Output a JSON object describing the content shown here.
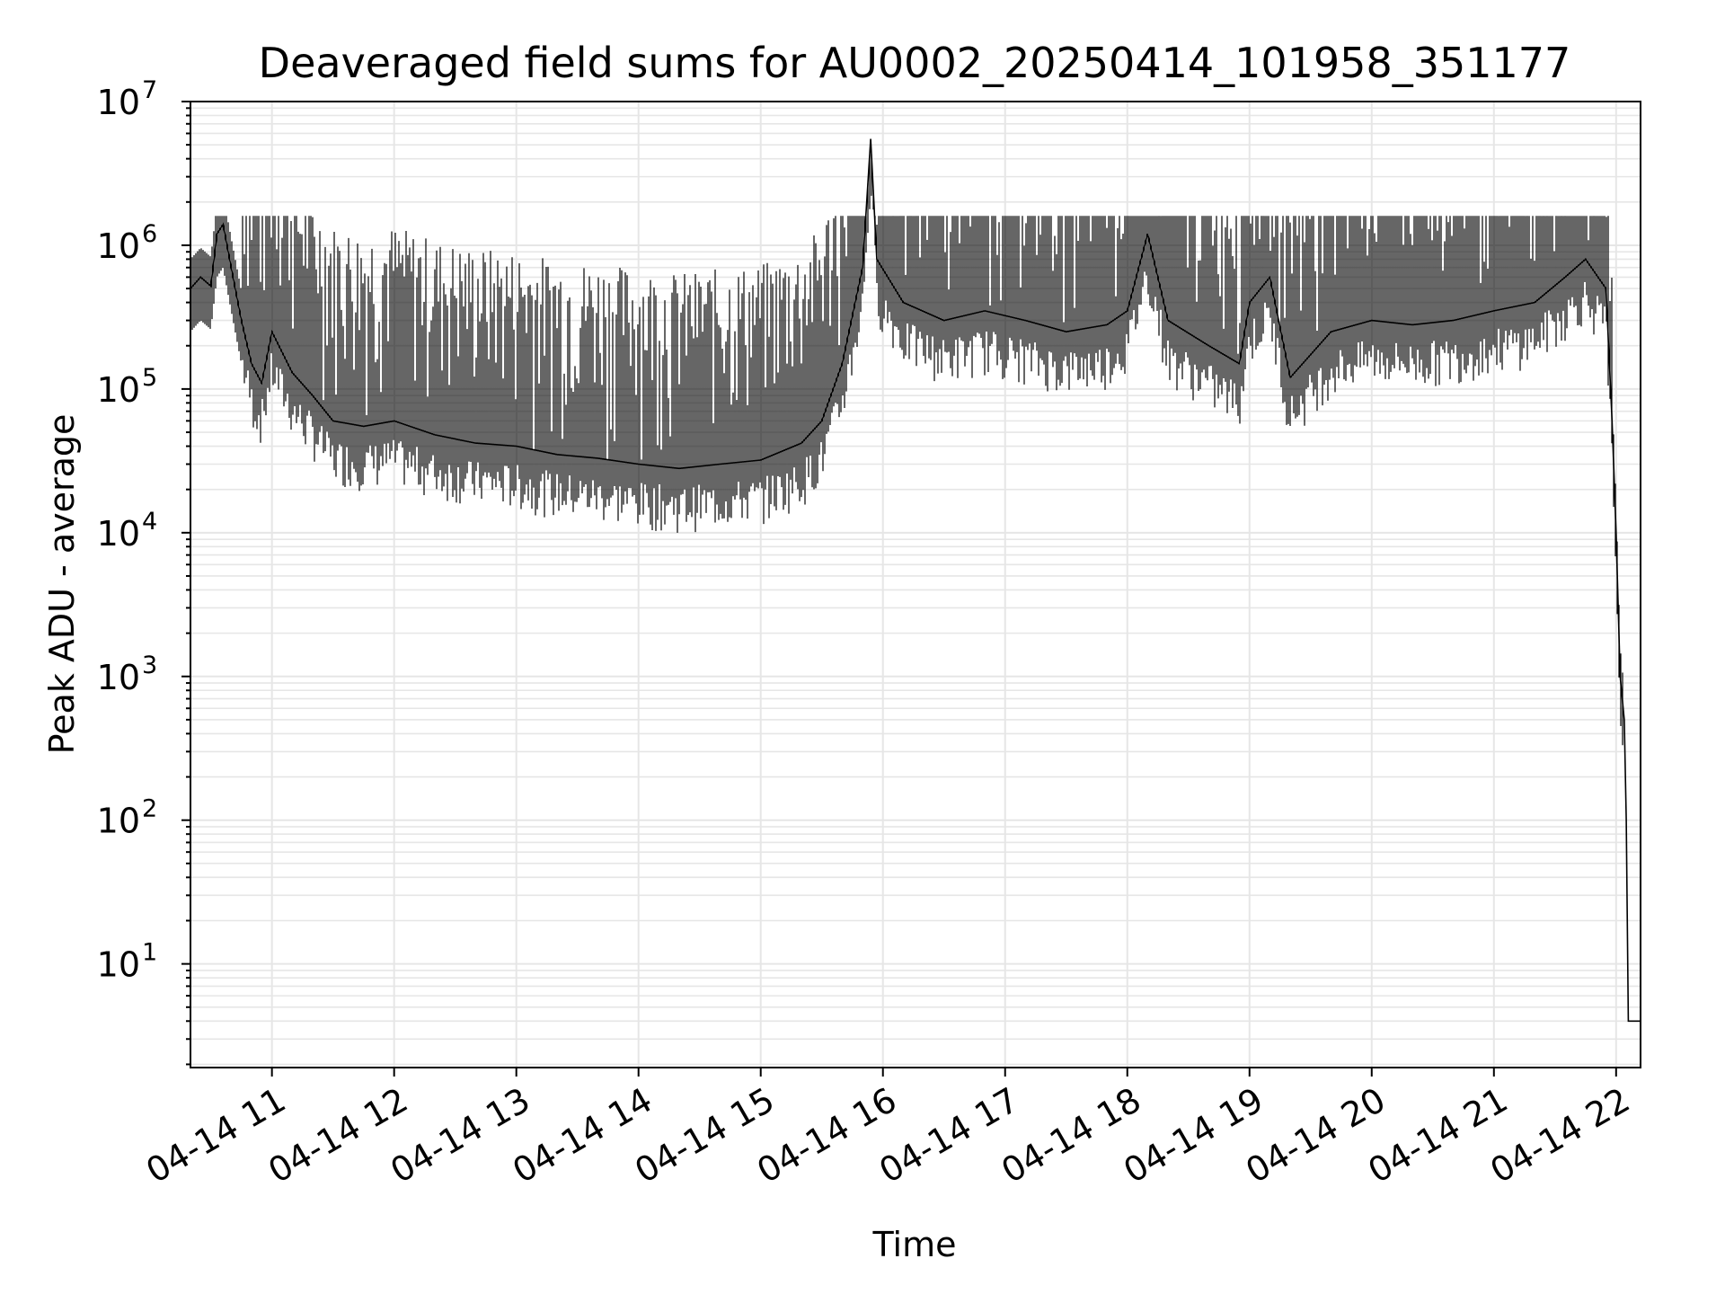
{
  "chart_data": {
    "type": "line",
    "title": "Deaveraged field sums for AU0002_20250414_101958_351177",
    "xlabel": "Time",
    "ylabel": "Peak ADU - average",
    "yscale": "log",
    "xlim": [
      "04-14 10:20",
      "04-14 22:12"
    ],
    "ylim": [
      1.9,
      10000000
    ],
    "grid": true,
    "grid_color": "#e6e6e6",
    "line_color": "#000000",
    "x_ticks": [
      {
        "label": "04-14 11",
        "hour": 11
      },
      {
        "label": "04-14 12",
        "hour": 12
      },
      {
        "label": "04-14 13",
        "hour": 13
      },
      {
        "label": "04-14 14",
        "hour": 14
      },
      {
        "label": "04-14 15",
        "hour": 15
      },
      {
        "label": "04-14 16",
        "hour": 16
      },
      {
        "label": "04-14 17",
        "hour": 17
      },
      {
        "label": "04-14 18",
        "hour": 18
      },
      {
        "label": "04-14 19",
        "hour": 19
      },
      {
        "label": "04-14 20",
        "hour": 20
      },
      {
        "label": "04-14 21",
        "hour": 21
      },
      {
        "label": "04-14 22",
        "hour": 22
      }
    ],
    "y_ticks": [
      {
        "base": "10",
        "exp": "1",
        "value": 10
      },
      {
        "base": "10",
        "exp": "2",
        "value": 100
      },
      {
        "base": "10",
        "exp": "3",
        "value": 1000
      },
      {
        "base": "10",
        "exp": "4",
        "value": 10000
      },
      {
        "base": "10",
        "exp": "5",
        "value": 100000
      },
      {
        "base": "10",
        "exp": "6",
        "value": 1000000
      },
      {
        "base": "10",
        "exp": "7",
        "value": 10000000
      }
    ],
    "series": [
      {
        "points": [
          [
            "10:20",
            500000
          ],
          [
            "10:25",
            600000
          ],
          [
            "10:30",
            520000
          ],
          [
            "10:33",
            1200000
          ],
          [
            "10:36",
            1400000
          ],
          [
            "10:40",
            700000
          ],
          [
            "10:45",
            300000
          ],
          [
            "10:50",
            150000
          ],
          [
            "10:55",
            110000
          ],
          [
            "11:00",
            250000
          ],
          [
            "11:10",
            130000
          ],
          [
            "11:20",
            90000
          ],
          [
            "11:30",
            60000
          ],
          [
            "11:45",
            55000
          ],
          [
            "12:00",
            60000
          ],
          [
            "12:20",
            48000
          ],
          [
            "12:40",
            42000
          ],
          [
            "13:00",
            40000
          ],
          [
            "13:20",
            35000
          ],
          [
            "13:40",
            33000
          ],
          [
            "14:00",
            30000
          ],
          [
            "14:20",
            28000
          ],
          [
            "14:40",
            30000
          ],
          [
            "15:00",
            32000
          ],
          [
            "15:20",
            42000
          ],
          [
            "15:30",
            60000
          ],
          [
            "15:40",
            150000
          ],
          [
            "15:50",
            700000
          ],
          [
            "15:54",
            5500000
          ],
          [
            "15:57",
            800000
          ],
          [
            "16:10",
            400000
          ],
          [
            "16:30",
            300000
          ],
          [
            "16:50",
            350000
          ],
          [
            "17:10",
            300000
          ],
          [
            "17:30",
            250000
          ],
          [
            "17:50",
            280000
          ],
          [
            "18:00",
            350000
          ],
          [
            "18:10",
            1200000
          ],
          [
            "18:20",
            300000
          ],
          [
            "18:40",
            200000
          ],
          [
            "18:55",
            150000
          ],
          [
            "19:00",
            400000
          ],
          [
            "19:10",
            600000
          ],
          [
            "19:20",
            120000
          ],
          [
            "19:40",
            250000
          ],
          [
            "20:00",
            300000
          ],
          [
            "20:20",
            280000
          ],
          [
            "20:40",
            300000
          ],
          [
            "21:00",
            350000
          ],
          [
            "21:20",
            400000
          ],
          [
            "21:35",
            600000
          ],
          [
            "21:45",
            800000
          ],
          [
            "21:55",
            500000
          ],
          [
            "21:58",
            60000
          ],
          [
            "22:00",
            10000
          ],
          [
            "22:02",
            1000
          ],
          [
            "22:04",
            500
          ],
          [
            "22:05",
            100
          ],
          [
            "22:06",
            4
          ],
          [
            "22:12",
            4
          ]
        ]
      }
    ]
  }
}
